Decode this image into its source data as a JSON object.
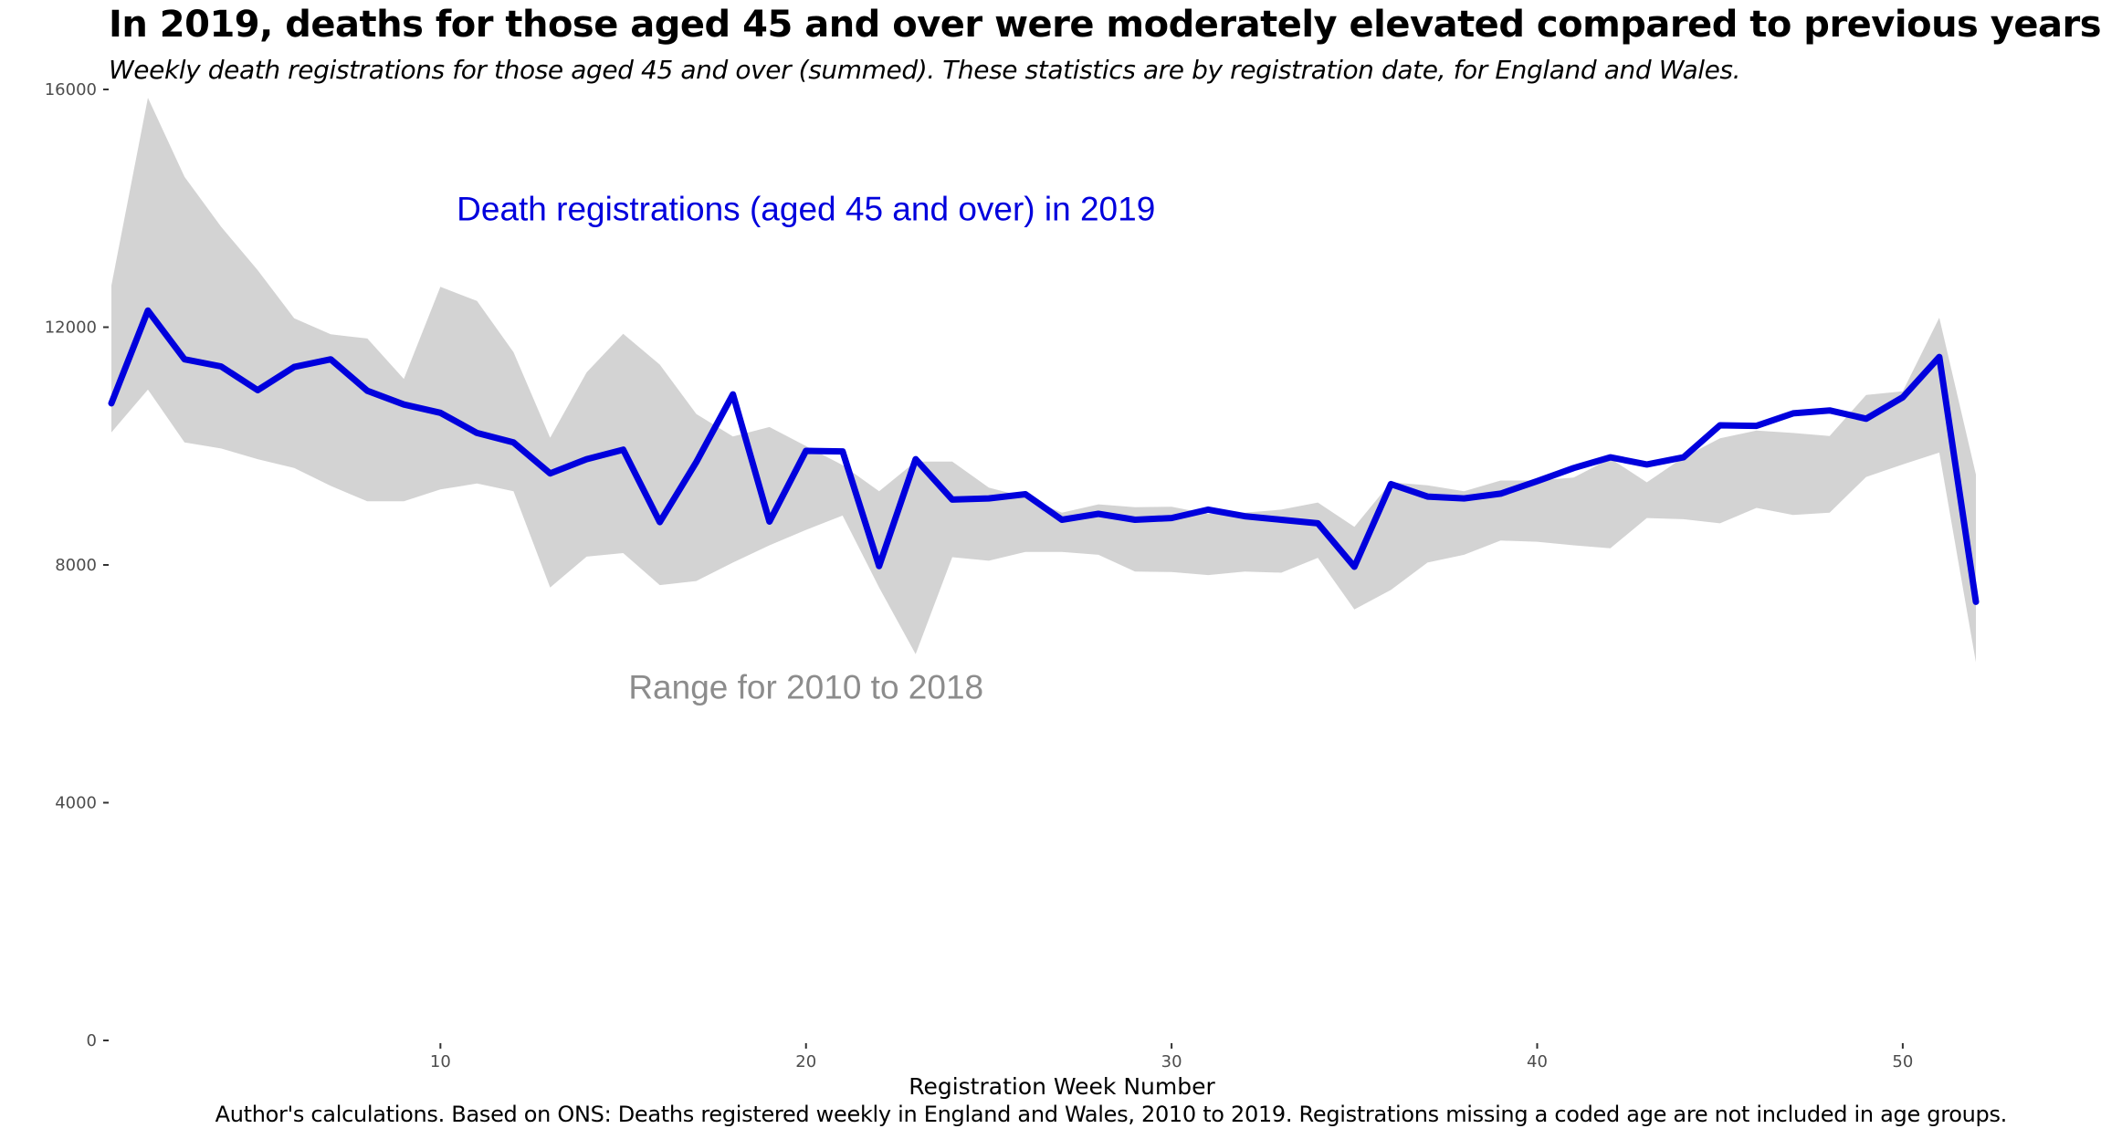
{
  "header": {
    "title": "In 2019, deaths for those aged 45 and over were moderately elevated compared to previous years",
    "subtitle": "Weekly death registrations for those aged 45 and over (summed). These statistics are by registration date, for England and Wales."
  },
  "caption": "Author's calculations. Based on ONS: Deaths registered weekly in England and Wales, 2010 to 2019. Registrations missing a coded age are not included in age groups.",
  "colors": {
    "line": "#0000dd",
    "ribbon": "#d3d3d3",
    "range_label": "#8c8c8c"
  },
  "chart_data": {
    "type": "line",
    "xlabel": "Registration Week Number",
    "ylabel": "",
    "xlim": [
      1,
      53
    ],
    "ylim": [
      0,
      16000
    ],
    "x_ticks": [
      10,
      20,
      30,
      40,
      50
    ],
    "y_ticks": [
      0,
      4000,
      8000,
      12000,
      16000
    ],
    "grid": false,
    "annotations": [
      {
        "text": "Death registrations (aged 45 and over) in 2019",
        "x": 20,
        "y": 14000,
        "color": "#0000dd"
      },
      {
        "text": "Range for 2010 to 2018",
        "x": 20,
        "y": 5950,
        "color": "#8c8c8c"
      }
    ],
    "x": [
      1,
      2,
      3,
      4,
      5,
      6,
      7,
      8,
      9,
      10,
      11,
      12,
      13,
      14,
      15,
      16,
      17,
      18,
      19,
      20,
      21,
      22,
      23,
      24,
      25,
      26,
      27,
      28,
      29,
      30,
      31,
      32,
      33,
      34,
      35,
      36,
      37,
      38,
      39,
      40,
      41,
      42,
      43,
      44,
      45,
      46,
      47,
      48,
      49,
      50,
      51,
      52,
      53
    ],
    "series": [
      {
        "values": [
          10720,
          12280,
          11460,
          11340,
          10940,
          11330,
          11460,
          10930,
          10700,
          10560,
          10220,
          10060,
          9540,
          9780,
          9940,
          8720,
          9730,
          10870,
          8730,
          9920,
          9910,
          7980,
          9780,
          9100,
          9120,
          9190,
          8760,
          8860,
          8760,
          8790,
          8930,
          8820,
          8760,
          8700,
          7970,
          9360,
          9150,
          9120,
          9200,
          9410,
          9630,
          9810,
          9690,
          9810,
          10350,
          10340,
          10550,
          10600,
          10460,
          10820,
          11500,
          7380,
          null
        ]
      }
    ],
    "range": {
      "lower": [
        10230,
        10950,
        10060,
        9960,
        9780,
        9630,
        9330,
        9070,
        9070,
        9270,
        9370,
        9240,
        7620,
        8140,
        8200,
        7660,
        7730,
        8040,
        8330,
        8590,
        8830,
        7620,
        6500,
        8130,
        8070,
        8220,
        8220,
        8170,
        7890,
        7880,
        7830,
        7890,
        7870,
        8120,
        7250,
        7580,
        8040,
        8170,
        8410,
        8390,
        8330,
        8280,
        8790,
        8770,
        8700,
        8960,
        8840,
        8880,
        9480,
        9690,
        9890,
        6360,
        null
      ],
      "upper": [
        12700,
        15860,
        14530,
        13690,
        12960,
        12150,
        11880,
        11810,
        11130,
        12680,
        12440,
        11580,
        10140,
        11240,
        11890,
        11370,
        10540,
        10160,
        10320,
        10000,
        9680,
        9240,
        9740,
        9740,
        9300,
        9140,
        8880,
        9020,
        8970,
        8980,
        8860,
        8880,
        8930,
        9050,
        8640,
        9390,
        9340,
        9240,
        9420,
        9420,
        9470,
        9790,
        9390,
        9810,
        10130,
        10260,
        10220,
        10170,
        10860,
        10920,
        12160,
        9520,
        null
      ]
    }
  }
}
